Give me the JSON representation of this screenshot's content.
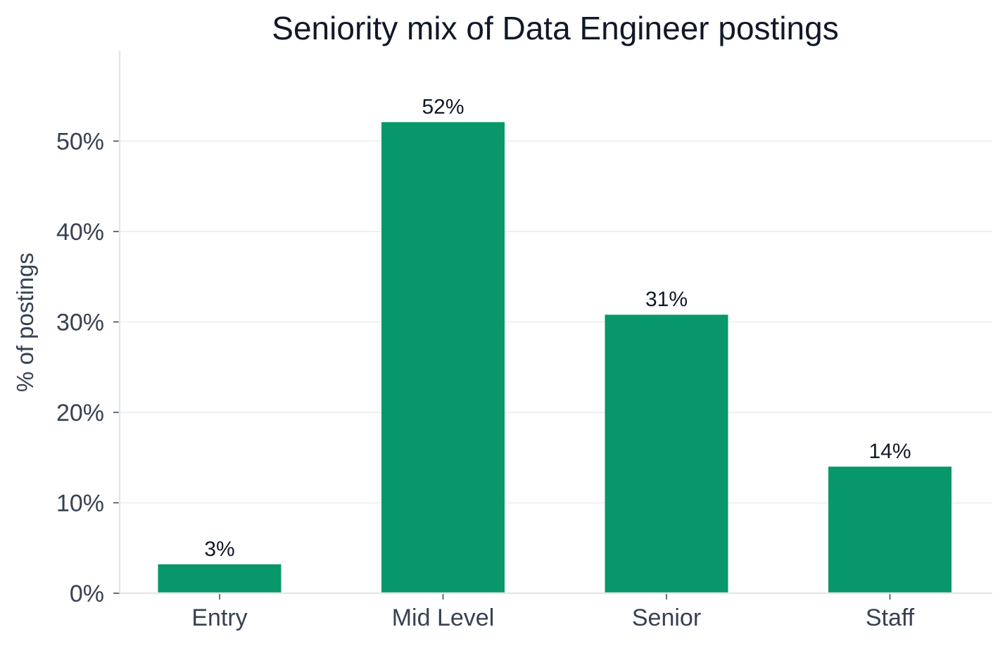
{
  "colors": {
    "bar": "#07976b",
    "grid": "#eef0f3",
    "axis": "#e5e7eb",
    "tick": "#374151",
    "title": "#111827"
  },
  "chart_data": {
    "type": "bar",
    "title": "Seniority mix of Data Engineer postings",
    "xlabel": "",
    "ylabel": "% of postings",
    "categories": [
      "Entry",
      "Mid Level",
      "Senior",
      "Staff"
    ],
    "values": [
      3.2,
      52.1,
      30.8,
      14.0
    ],
    "data_labels": [
      "3%",
      "52%",
      "31%",
      "14%"
    ],
    "ylim": [
      0,
      60
    ],
    "yticks": [
      0,
      10,
      20,
      30,
      40,
      50
    ],
    "ytick_labels": [
      "0%",
      "10%",
      "20%",
      "30%",
      "40%",
      "50%"
    ],
    "grid": true,
    "legend": "none"
  }
}
